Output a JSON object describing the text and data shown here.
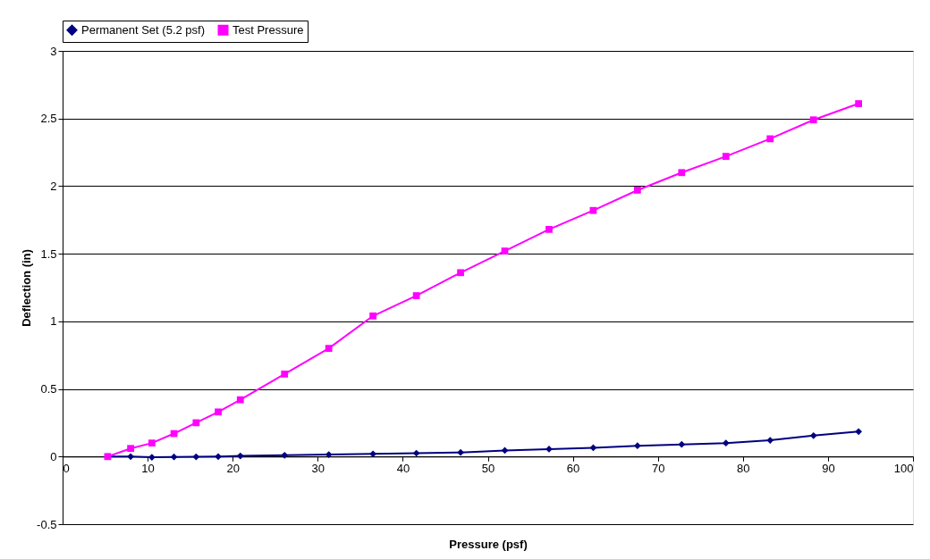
{
  "chart_data": {
    "type": "line",
    "xlabel": "Pressure (psf)",
    "ylabel": "Deflection (in)",
    "xlim": [
      0,
      100
    ],
    "xticks": [
      0,
      10,
      20,
      30,
      40,
      50,
      60,
      70,
      80,
      90,
      100
    ],
    "ylim": [
      -0.5,
      3
    ],
    "yticks": [
      -0.5,
      0,
      0.5,
      1,
      1.5,
      2,
      2.5,
      3
    ],
    "grid": "y",
    "legend": "top",
    "x": [
      5.3,
      8.0,
      10.5,
      13.1,
      15.7,
      18.3,
      20.9,
      26.1,
      31.3,
      36.5,
      41.6,
      46.8,
      52.0,
      57.2,
      62.4,
      67.6,
      72.8,
      78.0,
      83.2,
      88.3,
      93.6
    ],
    "series": [
      {
        "name": "Permanent Set (5.2 psf)",
        "color": "#000080",
        "marker": "diamond",
        "values": [
          0,
          0,
          -0.005,
          -0.003,
          -0.002,
          0,
          0.005,
          0.01,
          0.015,
          0.02,
          0.025,
          0.03,
          0.045,
          0.055,
          0.065,
          0.08,
          0.09,
          0.1,
          0.12,
          0.155,
          0.185
        ]
      },
      {
        "name": "Test Pressure",
        "color": "#ff00ff",
        "marker": "square",
        "values": [
          0,
          0.06,
          0.1,
          0.17,
          0.25,
          0.33,
          0.42,
          0.61,
          0.8,
          1.04,
          1.19,
          1.36,
          1.52,
          1.68,
          1.82,
          1.97,
          2.1,
          2.22,
          2.35,
          2.49,
          2.61
        ]
      }
    ]
  }
}
